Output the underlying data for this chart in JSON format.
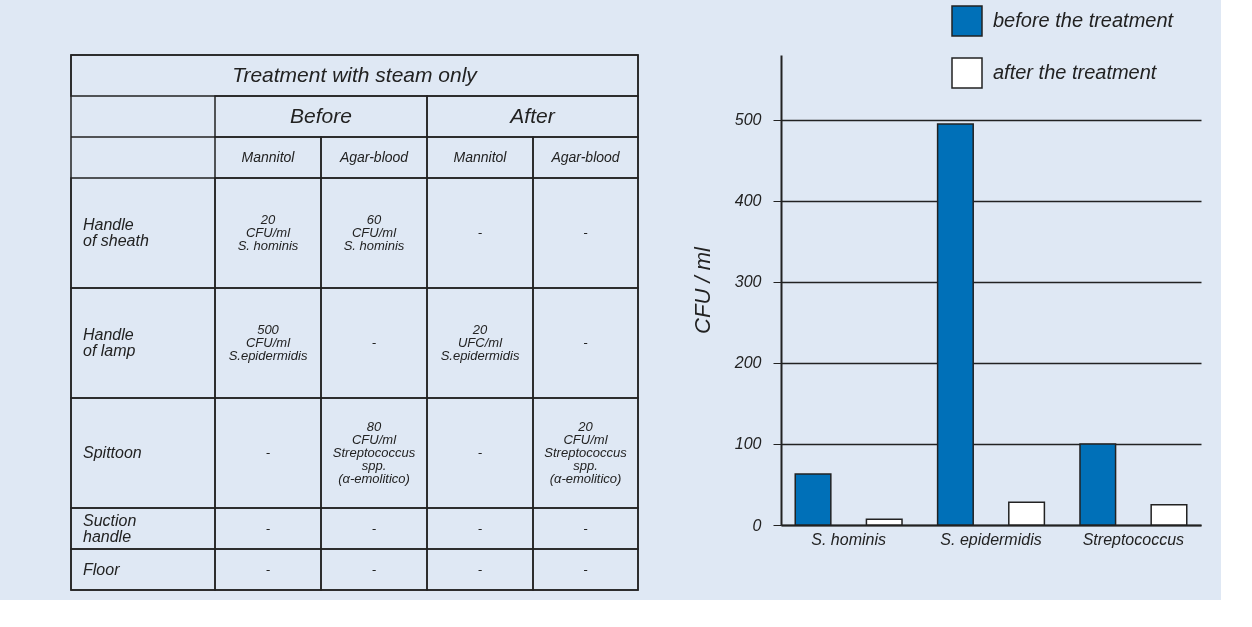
{
  "chart_data": [
    {
      "type": "other",
      "title": "Treatment with steam only",
      "annotations": [
        "Before",
        "After",
        "Mannitol",
        "Agar-blood",
        "Mannitol",
        "Agar-blood",
        "Handle\nof sheath",
        "20\nCFU/ml\nS. hominis",
        "60\nCFU/ml\nS. hominis",
        "-",
        "-",
        "Handle\nof lamp",
        "500\nCFU/ml\nS.epidermidis",
        "-",
        "20\nUFC/ml\nS.epidermidis",
        "-",
        "Spittoon",
        "-",
        "80\nCFU/ml\nStreptococcus\nspp.\n(α-emolitico)",
        "-",
        "20\nCFU/ml\nStreptococcus\nspp.\n(α-emolitico)",
        "Suction\nhandle",
        "-",
        "-",
        "-",
        "-",
        "Floor",
        "-",
        "-",
        "-",
        "-"
      ]
    },
    {
      "type": "bar",
      "categories": [
        "S. hominis",
        "S. epidermidis",
        "Streptococcus"
      ],
      "series": [
        {
          "name": "before the treatment",
          "color": "#0070b8",
          "values": [
            63,
            495,
            100
          ]
        },
        {
          "name": "after the treatment",
          "color": "#ffffff",
          "values": [
            7,
            28,
            25
          ]
        }
      ],
      "ylabel": "CFU / ml",
      "ylim": [
        0,
        580
      ],
      "yticks": [
        0,
        100,
        200,
        300,
        400,
        500
      ],
      "grid": "y",
      "legend": "top right"
    }
  ]
}
